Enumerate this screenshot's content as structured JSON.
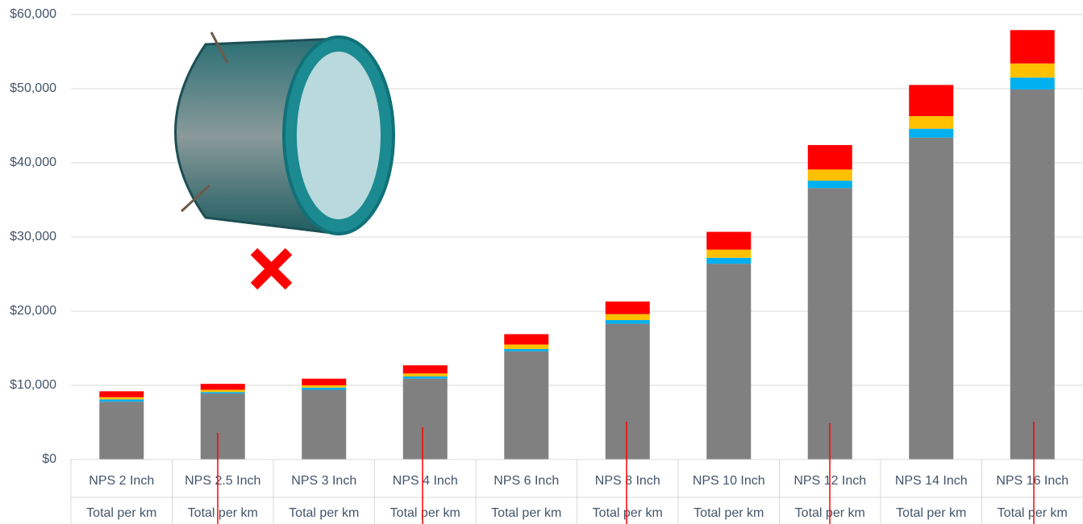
{
  "chart_data": {
    "type": "stacked_bar",
    "categories": [
      "NPS 2 Inch",
      "NPS 2.5 Inch",
      "NPS 3 Inch",
      "NPS 4 Inch",
      "NPS 6 Inch",
      "NPS 8 Inch",
      "NPS 10 Inch",
      "NPS 12 Inch",
      "NPS 14 Inch",
      "NPS 16 Inch"
    ],
    "category_sublabels": [
      "Total per km",
      "Total per km",
      "Total per km",
      "Total per km",
      "Total per km",
      "Total per km",
      "Total per km",
      "Total per km",
      "Total per km",
      "Total per km"
    ],
    "series": [
      {
        "color": "#808080",
        "values": [
          7800,
          8900,
          9400,
          10900,
          14600,
          18300,
          26400,
          36600,
          43400,
          49900
        ]
      },
      {
        "color": "#00b0f0",
        "values": [
          300,
          200,
          300,
          300,
          300,
          500,
          800,
          1000,
          1200,
          1600
        ]
      },
      {
        "color": "#ffc000",
        "values": [
          300,
          300,
          300,
          400,
          600,
          800,
          1100,
          1500,
          1700,
          1900
        ]
      },
      {
        "color": "#ff0000",
        "values": [
          800,
          800,
          900,
          1100,
          1400,
          1700,
          2400,
          3300,
          4200,
          4500
        ]
      }
    ],
    "ylim": [
      0,
      60000
    ],
    "yticks": [
      {
        "value": 0,
        "label": "$0"
      },
      {
        "value": 10000,
        "label": "$10,000"
      },
      {
        "value": 20000,
        "label": "$20,000"
      },
      {
        "value": 30000,
        "label": "$30,000"
      },
      {
        "value": 40000,
        "label": "$40,000"
      },
      {
        "value": 50000,
        "label": "$50,000"
      },
      {
        "value": 60000,
        "label": "$60,000"
      }
    ],
    "grid": true
  }
}
